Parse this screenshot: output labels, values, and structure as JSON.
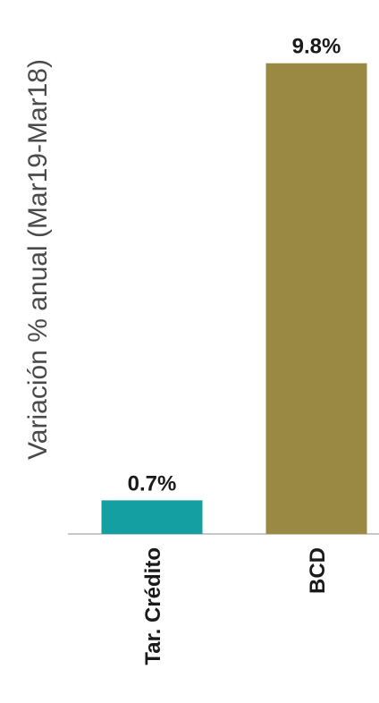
{
  "chart_data": {
    "type": "bar",
    "categories": [
      "Tar. Crédito",
      "BCD"
    ],
    "values": [
      0.7,
      9.8
    ],
    "data_labels": [
      "0.7%",
      "9.8%"
    ],
    "bar_colors": [
      "#14a0a2",
      "#9a8943"
    ],
    "title": "",
    "xlabel": "",
    "ylabel": "Variación % anual (Mar19-Mar18)",
    "ylim": [
      0,
      10
    ],
    "grid": false,
    "legend": "none",
    "axis_color": "#c8c8c8"
  }
}
